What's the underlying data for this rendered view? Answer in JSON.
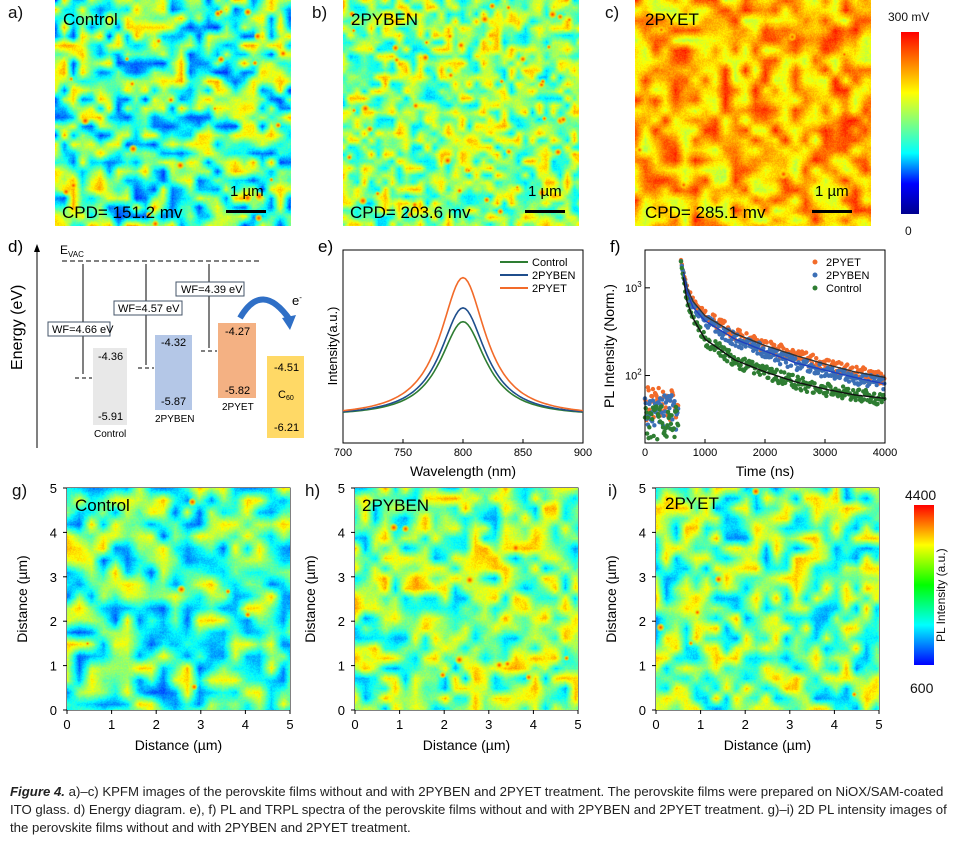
{
  "kpfm": {
    "panels": [
      {
        "label": "a)",
        "name": "Control",
        "cpd": "CPD= 151.2 mv",
        "scale": "1 µm"
      },
      {
        "label": "b)",
        "name": "2PYBEN",
        "cpd": "CPD= 203.6 mv",
        "scale": "1 µm"
      },
      {
        "label": "c)",
        "name": "2PYET",
        "cpd": "CPD= 285.1 mv",
        "scale": "1 µm"
      }
    ],
    "colorbar": {
      "max": "300 mV",
      "min": "0"
    }
  },
  "energy": {
    "label": "d)",
    "ylabel": "Energy (eV)",
    "evac": "E",
    "evac_sub": "VAC",
    "electron": "e",
    "electron_sup": "-",
    "wf": [
      "WF=4.66 eV",
      "WF=4.57 eV",
      "WF=4.39 eV"
    ],
    "blocks": [
      {
        "name": "Control",
        "top": "-4.36",
        "bottom": "-5.91",
        "color": "#e8e8e8"
      },
      {
        "name": "2PYBEN",
        "top": "-4.32",
        "bottom": "-5.87",
        "color": "#b4c7e7"
      },
      {
        "name": "2PYET",
        "top": "-4.27",
        "bottom": "-5.82",
        "color": "#f4b183"
      },
      {
        "name": "C",
        "name_sub": "60",
        "top": "-4.51",
        "bottom": "-6.21",
        "color": "#ffd966"
      }
    ]
  },
  "chart_data": [
    {
      "panel": "e)",
      "type": "line",
      "xlabel": "Wavelength (nm)",
      "ylabel": "Intensity(a.u.)",
      "xlim": [
        700,
        900
      ],
      "ylim": [
        -0.2,
        1.2
      ],
      "xticks": [
        "700",
        "750",
        "800",
        "850",
        "900"
      ],
      "legend_position": "top-right",
      "series": [
        {
          "name": "Control",
          "color": "#2e7d32",
          "peak_nm": 800,
          "peak": 0.68,
          "fwhm_nm": 46
        },
        {
          "name": "2PYBEN",
          "color": "#1f4e8c",
          "peak_nm": 800,
          "peak": 0.78,
          "fwhm_nm": 46
        },
        {
          "name": "2PYET",
          "color": "#f26b2a",
          "peak_nm": 800,
          "peak": 1.0,
          "fwhm_nm": 46
        }
      ]
    },
    {
      "panel": "f)",
      "type": "scatter",
      "xlabel": "Time (ns)",
      "ylabel": "PL Intensity (Norm.)",
      "xlim": [
        0,
        4000
      ],
      "ylim": [
        17,
        2700
      ],
      "yscale": "log",
      "xticks": [
        "0",
        "1000",
        "2000",
        "3000",
        "4000"
      ],
      "yticks": [
        {
          "v": 100,
          "base": "10",
          "exp": "2"
        },
        {
          "v": 1000,
          "base": "10",
          "exp": "3"
        }
      ],
      "legend_position": "top-right",
      "x": [
        600,
        700,
        800,
        1000,
        1500,
        2000,
        2500,
        3000,
        3500,
        4000
      ],
      "series": [
        {
          "name": "2PYET",
          "color": "#f26b2a",
          "pre": 50,
          "values": [
            2000,
            1000,
            700,
            480,
            300,
            220,
            170,
            135,
            110,
            95
          ]
        },
        {
          "name": "2PYBEN",
          "color": "#3b6fb6",
          "pre": 40,
          "values": [
            2000,
            900,
            600,
            420,
            260,
            190,
            140,
            115,
            95,
            80
          ]
        },
        {
          "name": "Control",
          "color": "#2e7d32",
          "pre": 30,
          "values": [
            2000,
            700,
            450,
            260,
            150,
            110,
            85,
            70,
            60,
            55
          ]
        }
      ]
    }
  ],
  "pl_maps": {
    "panels": [
      {
        "label": "g)",
        "name": "Control"
      },
      {
        "label": "h)",
        "name": "2PYBEN"
      },
      {
        "label": "i)",
        "name": "2PYET"
      }
    ],
    "xlabel": "Distance (µm)",
    "ylabel": "Distance (µm)",
    "ticks": [
      "0",
      "1",
      "2",
      "3",
      "4",
      "5"
    ],
    "colorbar": {
      "max": "4400",
      "min": "600",
      "label": "PL Intensity (a.u.)"
    }
  },
  "caption": {
    "figure": "Figure 4.",
    "text": " a)–c) KPFM images of the perovskite films without and with 2PYBEN and 2PYET treatment. The perovskite films were prepared on NiOX/SAM-coated ITO glass. d) Energy diagram. e), f) PL and TRPL spectra of the perovskite films without and with 2PYBEN and 2PYET treatment. g)–i) 2D PL intensity images of the perovskite films without and with 2PYBEN and 2PYET treatment."
  }
}
